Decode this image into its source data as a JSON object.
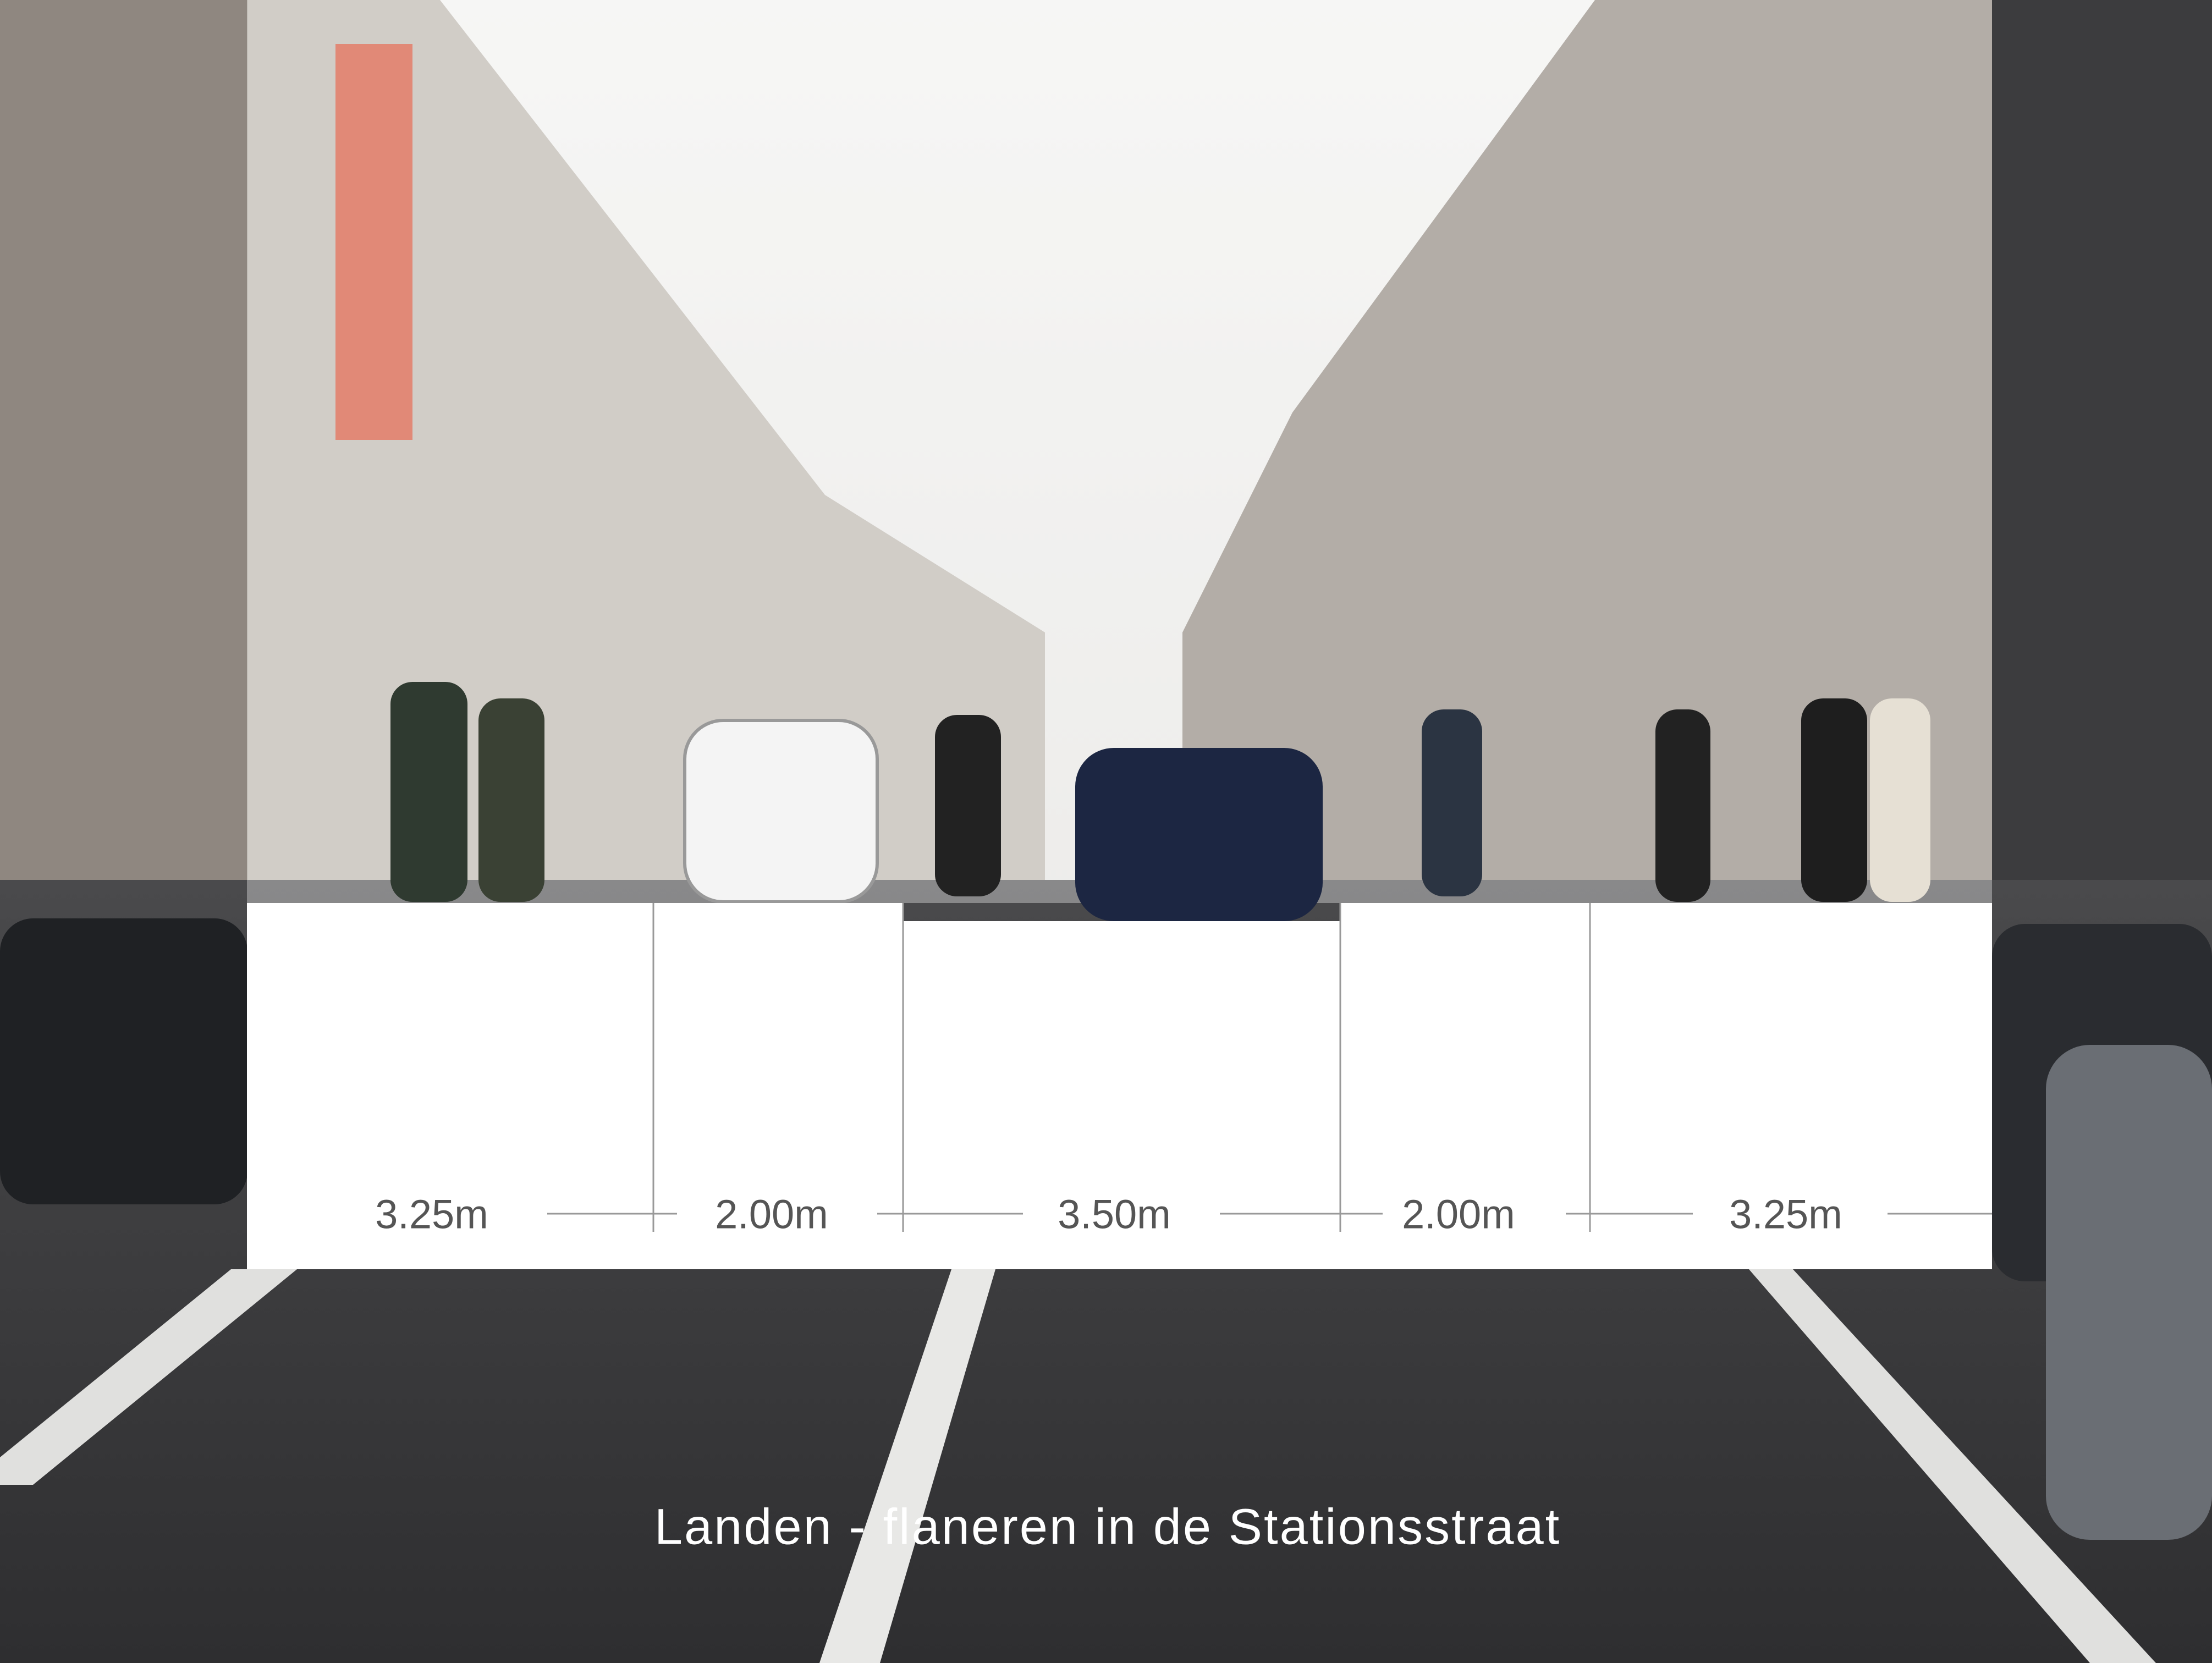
{
  "title": "Landen - flaneren in de Stationsstraat",
  "lanes": [
    {
      "width": "3.25m"
    },
    {
      "width": "2.00m"
    },
    {
      "width": "3.50m"
    },
    {
      "width": "2.00m"
    },
    {
      "width": "3.25m"
    }
  ]
}
